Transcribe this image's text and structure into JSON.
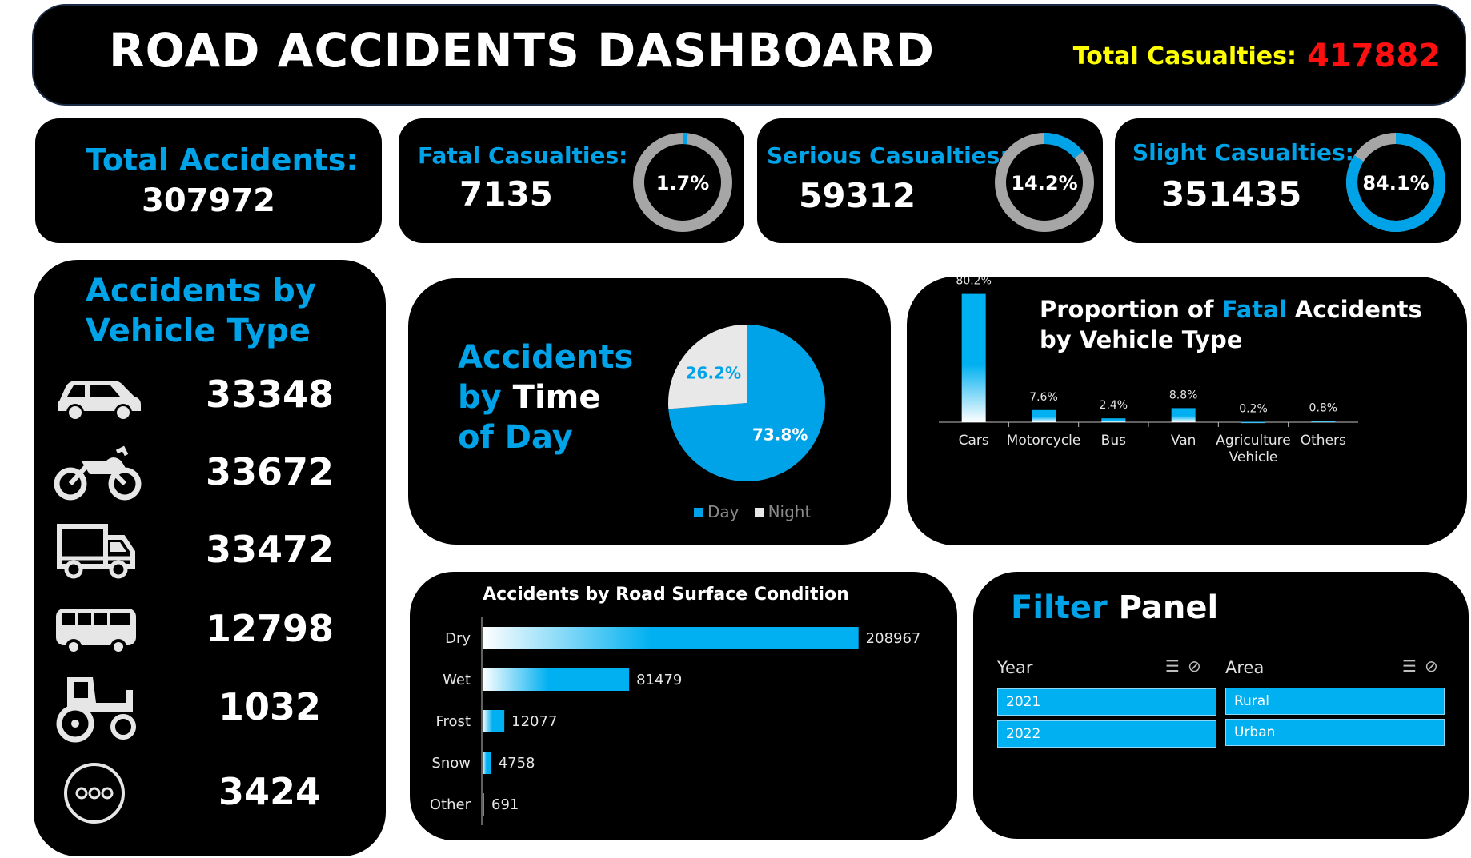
{
  "header": {
    "title": "ROAD ACCIDENTS DASHBOARD",
    "total_casualties_label": "Total Casualties:",
    "total_casualties_value": "417882"
  },
  "kpis": {
    "total_accidents": {
      "label": "Total Accidents:",
      "value": "307972"
    },
    "fatal": {
      "label": "Fatal Casualties:",
      "value": "7135",
      "pct_label": "1.7%",
      "pct": 1.7
    },
    "serious": {
      "label": "Serious Casualties:",
      "value": "59312",
      "pct_label": "14.2%",
      "pct": 14.2
    },
    "slight": {
      "label": "Slight Casualties:",
      "value": "351435",
      "pct_label": "84.1%",
      "pct": 84.1
    }
  },
  "vehicle_type": {
    "title": "Accidents by Vehicle Type",
    "items": [
      {
        "icon": "car-icon",
        "value": "33348"
      },
      {
        "icon": "motorcycle-icon",
        "value": "33672"
      },
      {
        "icon": "van-icon",
        "value": "33472"
      },
      {
        "icon": "bus-icon",
        "value": "12798"
      },
      {
        "icon": "tractor-icon",
        "value": "1032"
      },
      {
        "icon": "more-icon",
        "value": "3424"
      }
    ]
  },
  "time_of_day": {
    "title_line1": "Accidents",
    "title_line2a": "by",
    "title_line2b": "Time",
    "title_line3": "of Day",
    "legend": [
      "Day",
      "Night"
    ]
  },
  "fatal_by_vehicle": {
    "title_pre": "Proportion of",
    "title_accent": "Fatal",
    "title_post": "Accidents",
    "title_line2": "by Vehicle Type"
  },
  "road_surface": {
    "title": "Accidents by Road Surface Condition"
  },
  "filter_panel": {
    "title_accent": "Filter",
    "title_rest": "Panel",
    "year": {
      "label": "Year",
      "options": [
        "2021",
        "2022"
      ]
    },
    "area": {
      "label": "Area",
      "options": [
        "Rural",
        "Urban"
      ]
    }
  },
  "colors": {
    "accent": "#00a2e8",
    "bar": "#00b0f0",
    "ring_track": "#a6a6a6",
    "night": "#e8e8e8",
    "casualties_label": "#ffff00",
    "casualties_value": "#ff1010"
  },
  "chart_data": [
    {
      "type": "pie",
      "categories": [
        "Day",
        "Night"
      ],
      "values": [
        73.8,
        26.2
      ],
      "labels": [
        "73.8%",
        "26.2%"
      ],
      "legend": "bottom"
    },
    {
      "type": "bar",
      "categories": [
        "Cars",
        "Motorcycle",
        "Bus",
        "Van",
        "Agriculture Vehicle",
        "Others"
      ],
      "values": [
        80.2,
        7.6,
        2.4,
        8.8,
        0.2,
        0.8
      ],
      "labels": [
        "80.2%",
        "7.6%",
        "2.4%",
        "8.8%",
        "0.2%",
        "0.8%"
      ],
      "ylim": [
        0,
        85
      ],
      "grid": false
    },
    {
      "type": "bar",
      "orientation": "horizontal",
      "categories": [
        "Dry",
        "Wet",
        "Frost",
        "Snow",
        "Other"
      ],
      "values": [
        208967,
        81479,
        12077,
        4758,
        691
      ],
      "labels": [
        "208967",
        "81479",
        "12077",
        "4758",
        "691"
      ],
      "xlim": [
        0,
        210000
      ],
      "grid": false
    }
  ]
}
